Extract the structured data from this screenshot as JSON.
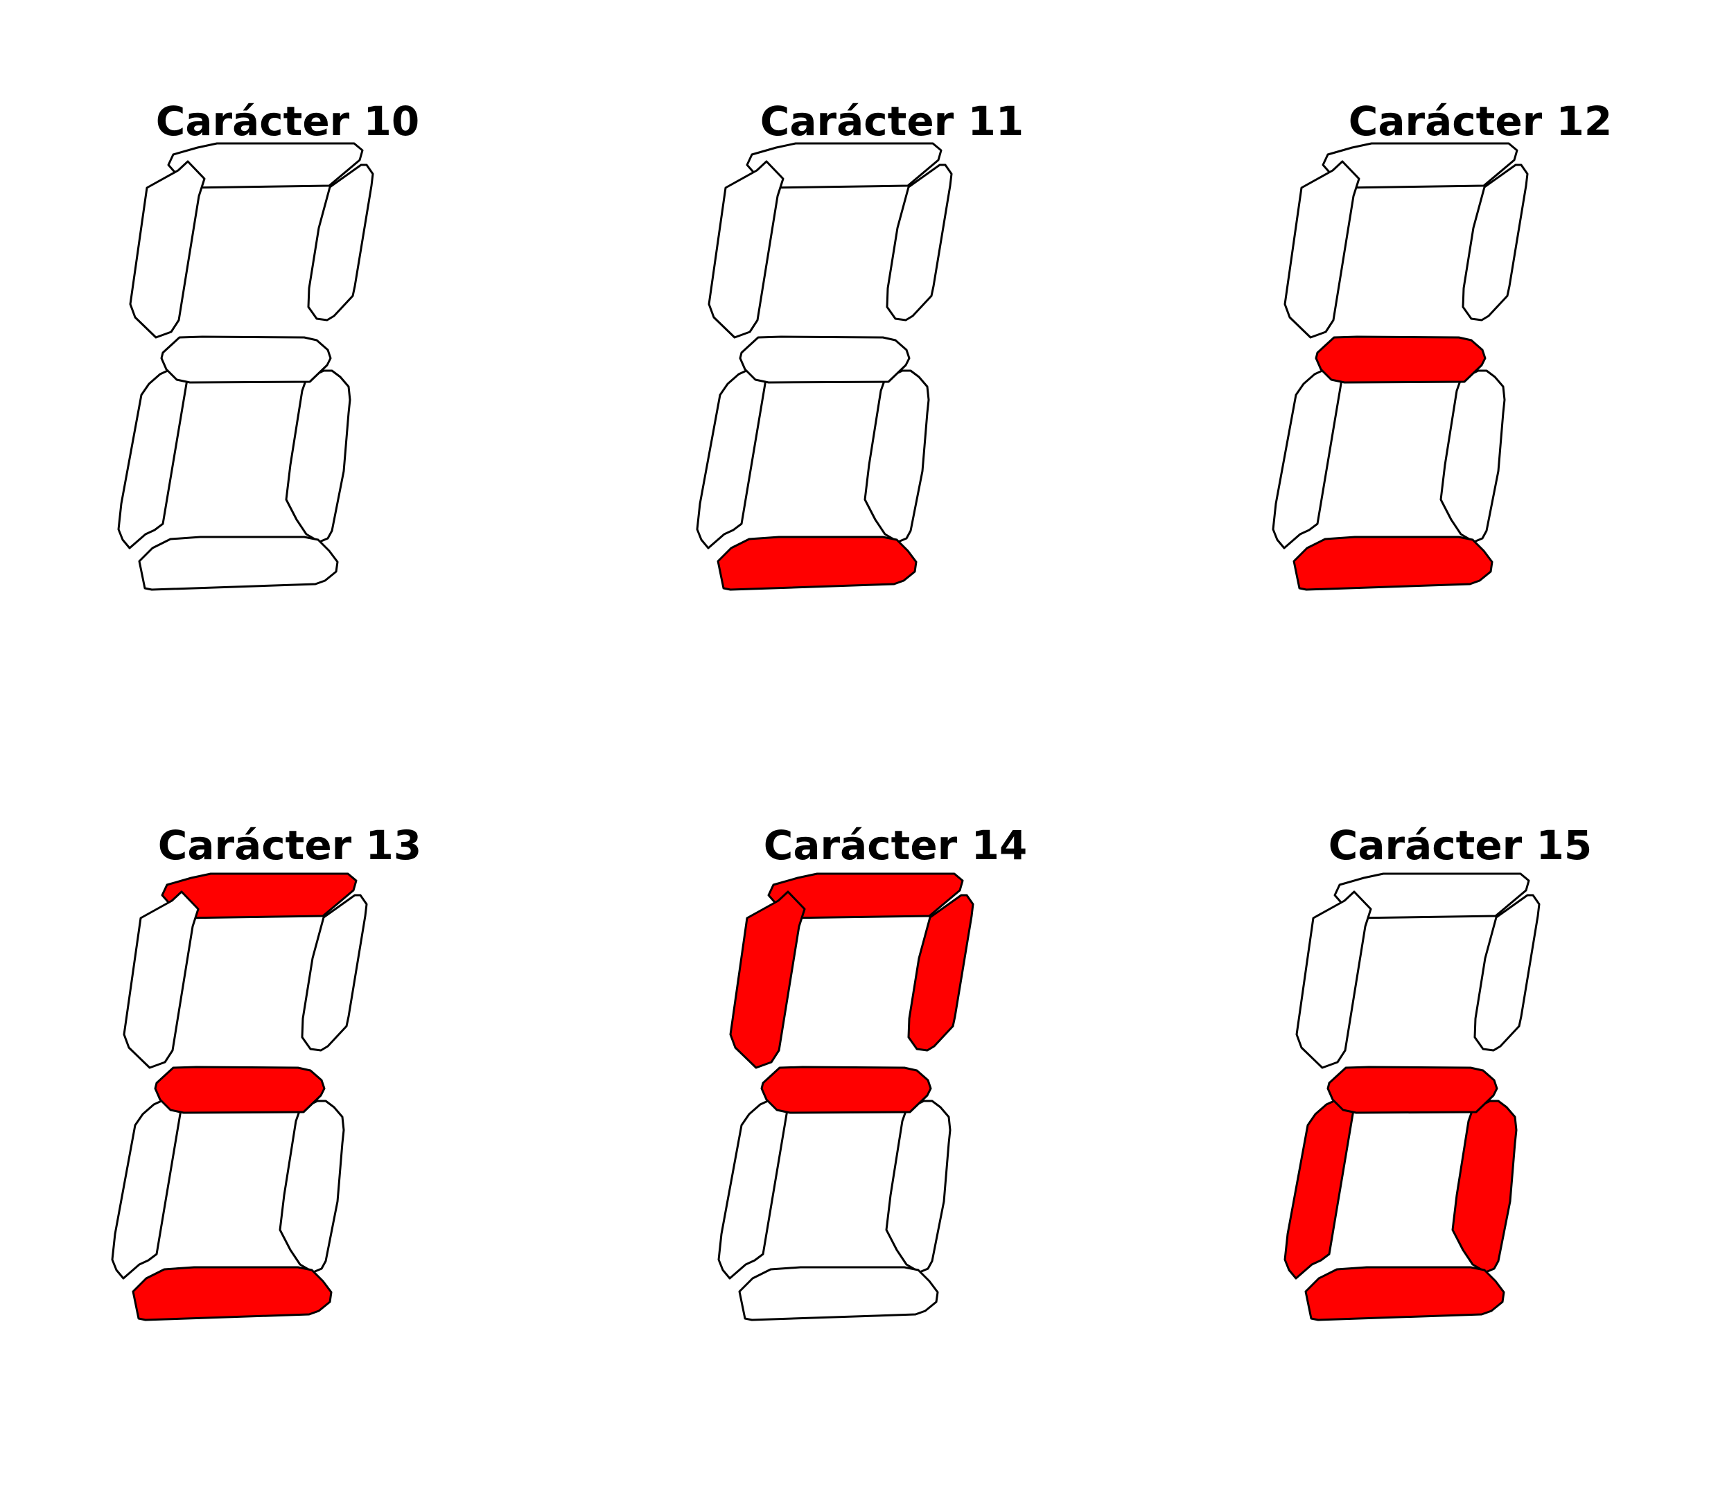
{
  "colors": {
    "on": "#ff0000",
    "off": "#ffffff",
    "outline": "#000000"
  },
  "characters": [
    {
      "title": "Carácter 10",
      "segments": {
        "a": 0,
        "b": 0,
        "c": 0,
        "d": 0,
        "e": 0,
        "f": 0,
        "g": 0
      }
    },
    {
      "title": "Carácter 11",
      "segments": {
        "a": 0,
        "b": 0,
        "c": 0,
        "d": 1,
        "e": 0,
        "f": 0,
        "g": 0
      }
    },
    {
      "title": "Carácter 12",
      "segments": {
        "a": 0,
        "b": 0,
        "c": 0,
        "d": 1,
        "e": 0,
        "f": 0,
        "g": 1
      }
    },
    {
      "title": "Carácter 13",
      "segments": {
        "a": 1,
        "b": 0,
        "c": 0,
        "d": 1,
        "e": 0,
        "f": 0,
        "g": 1
      }
    },
    {
      "title": "Carácter 14",
      "segments": {
        "a": 1,
        "b": 1,
        "c": 0,
        "d": 0,
        "e": 0,
        "f": 1,
        "g": 1
      }
    },
    {
      "title": "Carácter 15",
      "segments": {
        "a": 0,
        "b": 0,
        "c": 1,
        "d": 1,
        "e": 1,
        "f": 0,
        "g": 1
      }
    }
  ]
}
